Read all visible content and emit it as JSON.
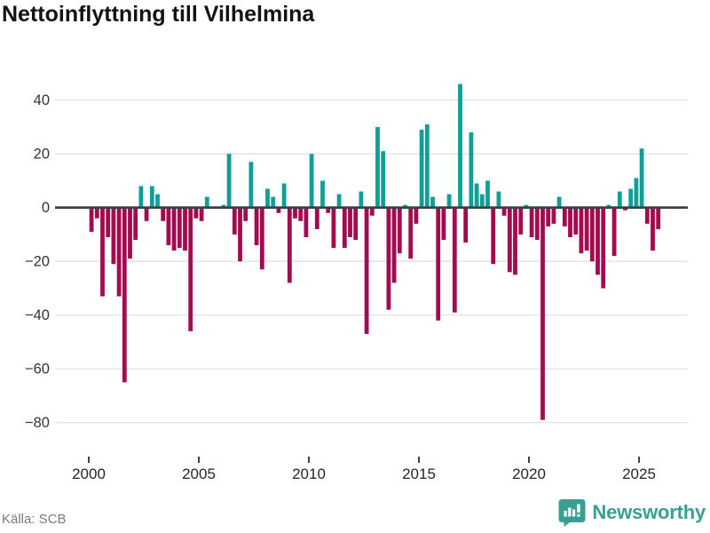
{
  "title": "Nettoinflyttning till Vilhelmina",
  "source": "Källa: SCB",
  "brand": {
    "name": "Newsworthy"
  },
  "colors": {
    "positive": "#0f9f98",
    "negative": "#a30b50",
    "grid": "#e2e2e2",
    "zero_line": "#3a4046",
    "axis_text": "#333333",
    "x_label_text": "#262626",
    "brand_teal": "#38a093"
  },
  "chart_data": {
    "type": "bar",
    "title": "Nettoinflyttning till Vilhelmina",
    "interval": "quarterly",
    "x_start": "2000-Q1",
    "x_tick_labels": [
      "2000",
      "2005",
      "2010",
      "2015",
      "2020",
      "2025"
    ],
    "y_ticks": [
      40,
      20,
      0,
      -20,
      -40,
      -60,
      -80
    ],
    "y_tick_labels": [
      "40",
      "20",
      "0",
      "−20",
      "−40",
      "−60",
      "−80"
    ],
    "ylim": [
      -85,
      50
    ],
    "grid": true,
    "legend": "none",
    "values": [
      -9,
      -4,
      -33,
      -11,
      -21,
      -33,
      -65,
      -19,
      -12,
      8,
      -5,
      8,
      5,
      -5,
      -14,
      -16,
      -15,
      -16,
      -46,
      -4,
      -5,
      4,
      0,
      0,
      1,
      20,
      -10,
      -20,
      -5,
      17,
      -14,
      -23,
      7,
      4,
      -2,
      9,
      -28,
      -4,
      -5,
      -11,
      20,
      -8,
      10,
      -2,
      -15,
      5,
      -15,
      -11,
      -12,
      6,
      -47,
      -3,
      30,
      21,
      -38,
      -28,
      -17,
      1,
      -19,
      -6,
      29,
      31,
      4,
      -42,
      -12,
      5,
      -39,
      46,
      -13,
      28,
      9,
      5,
      10,
      -21,
      6,
      -3,
      -24,
      -25,
      -10,
      1,
      -11,
      -12,
      -79,
      -7,
      -6,
      4,
      -7,
      -11,
      -10,
      -17,
      -16,
      -20,
      -25,
      -30,
      1,
      -18,
      6,
      -1,
      7,
      11,
      22,
      -6,
      -16,
      -8
    ]
  }
}
